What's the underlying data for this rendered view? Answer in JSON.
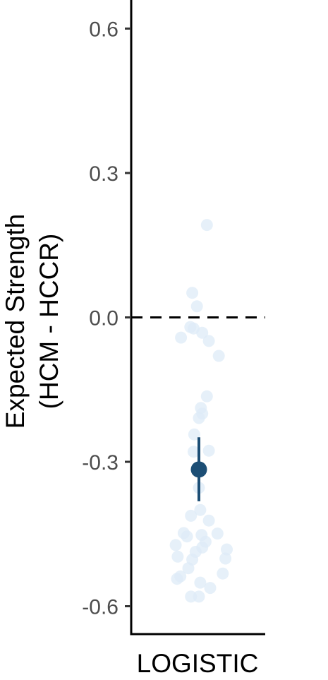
{
  "chart_data": {
    "type": "scatter",
    "ylabel_lines": [
      "Expected Strength",
      "(HCM - HCCR)"
    ],
    "categories": [
      "LOGISTIC"
    ],
    "ylim": [
      -0.66,
      0.66
    ],
    "yticks": [
      -0.6,
      -0.3,
      0.0,
      0.3,
      0.6
    ],
    "ytick_labels": [
      "-0.6",
      "-0.3",
      "0.0",
      "0.3",
      "0.6"
    ],
    "reference_line": {
      "y": 0.0,
      "style": "dashed"
    },
    "grid": false,
    "points": {
      "color": "#deebf7",
      "x_jitter": [
        0.12,
        -0.1,
        -0.03,
        -0.08,
        0.05,
        -0.13,
        -0.27,
        0.15,
        0.3,
        0.12,
        0.03,
        0.0,
        0.05,
        -0.07,
        -0.08,
        0.15,
        0.0,
        0.02,
        -0.12,
        0.15,
        -0.23,
        -0.18,
        0.1,
        -0.35,
        0.05,
        -0.05,
        0.28,
        0.42,
        -0.32,
        0.4,
        -0.1,
        0.36,
        -0.16,
        -0.33,
        0.02,
        -0.28,
        0.17,
        0.0,
        -0.12,
        0.04
      ],
      "y": [
        0.192,
        0.051,
        0.023,
        -0.023,
        -0.032,
        -0.02,
        -0.042,
        -0.049,
        -0.08,
        -0.164,
        -0.188,
        -0.209,
        -0.2,
        -0.243,
        -0.279,
        -0.277,
        -0.354,
        -0.4,
        -0.412,
        -0.422,
        -0.448,
        -0.455,
        -0.466,
        -0.473,
        -0.478,
        -0.487,
        -0.449,
        -0.482,
        -0.497,
        -0.501,
        -0.503,
        -0.532,
        -0.521,
        -0.543,
        -0.551,
        -0.538,
        -0.562,
        -0.58,
        -0.58,
        -0.452
      ]
    },
    "summary": {
      "x": "LOGISTIC",
      "mean": -0.316,
      "lower": -0.382,
      "upper": -0.249,
      "color": "#1c4e75"
    }
  }
}
